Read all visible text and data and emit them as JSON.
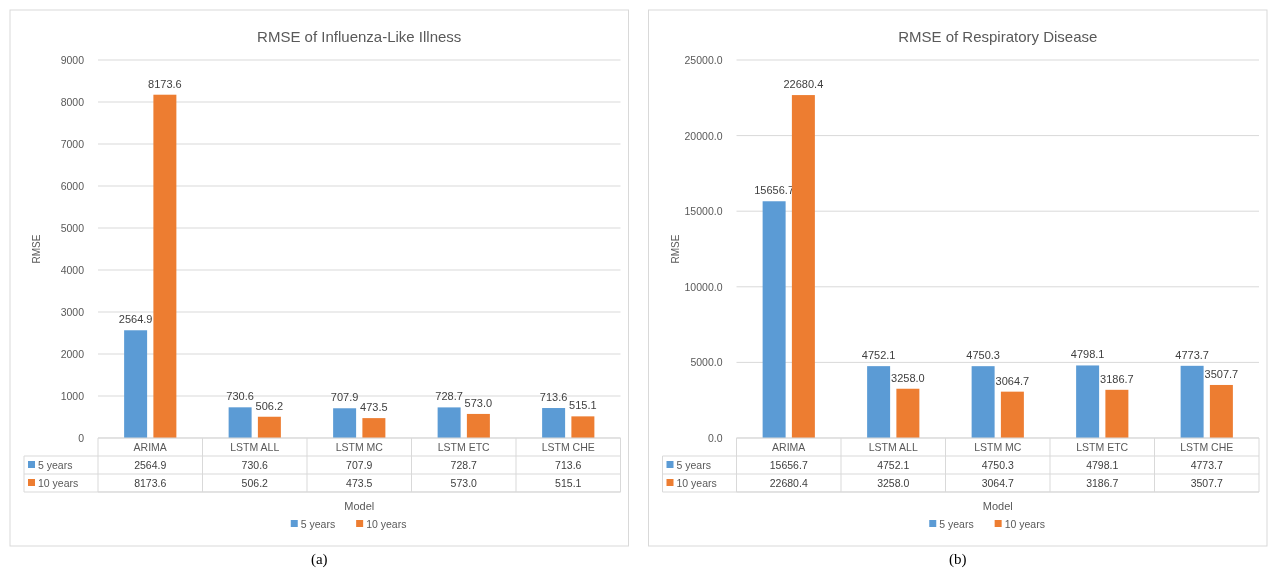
{
  "chart_data": [
    {
      "type": "bar",
      "title": "RMSE of Influenza-Like Illness",
      "xlabel": "Model",
      "ylabel": "RMSE",
      "categories": [
        "ARIMA",
        "LSTM ALL",
        "LSTM MC",
        "LSTM ETC",
        "LSTM CHE"
      ],
      "series": [
        {
          "name": "5 years",
          "color": "#5b9bd5",
          "values": [
            2564.9,
            730.6,
            707.9,
            728.7,
            713.6
          ],
          "value_labels": [
            "2564.9",
            "730.6",
            "707.9",
            "728.7",
            "713.6"
          ]
        },
        {
          "name": "10 years",
          "color": "#ed7d31",
          "values": [
            8173.6,
            506.2,
            473.5,
            573.0,
            515.1
          ],
          "value_labels": [
            "8173.6",
            "506.2",
            "473.5",
            "573.0",
            "515.1"
          ]
        }
      ],
      "ylim": [
        0,
        9000
      ],
      "yticks": [
        0,
        1000,
        2000,
        3000,
        4000,
        5000,
        6000,
        7000,
        8000,
        9000
      ],
      "grid": "y",
      "legend": "bottom",
      "annotations": [
        "(a)"
      ]
    },
    {
      "type": "bar",
      "title": "RMSE of Respiratory Disease",
      "xlabel": "Model",
      "ylabel": "RMSE",
      "categories": [
        "ARIMA",
        "LSTM ALL",
        "LSTM MC",
        "LSTM ETC",
        "LSTM CHE"
      ],
      "series": [
        {
          "name": "5 years",
          "color": "#5b9bd5",
          "values": [
            15656.7,
            4752.1,
            4750.3,
            4798.1,
            4773.7
          ],
          "value_labels": [
            "15656.7",
            "4752.1",
            "4750.3",
            "4798.1",
            "4773.7"
          ]
        },
        {
          "name": "10 years",
          "color": "#ed7d31",
          "values": [
            22680.4,
            3258.0,
            3064.7,
            3186.7,
            3507.7
          ],
          "value_labels": [
            "22680.4",
            "3258.0",
            "3064.7",
            "3186.7",
            "3507.7"
          ]
        }
      ],
      "ylim": [
        0,
        25000
      ],
      "yticks": [
        {
          "value": 0,
          "label": "0.0"
        },
        {
          "value": 5000,
          "label": "5000.0"
        },
        {
          "value": 10000,
          "label": "10000.0"
        },
        {
          "value": 15000,
          "label": "15000.0"
        },
        {
          "value": 20000,
          "label": "20000.0"
        },
        {
          "value": 25000,
          "label": "25000.0"
        }
      ],
      "grid": "y",
      "legend": "bottom",
      "annotations": [
        "(b)"
      ]
    }
  ]
}
